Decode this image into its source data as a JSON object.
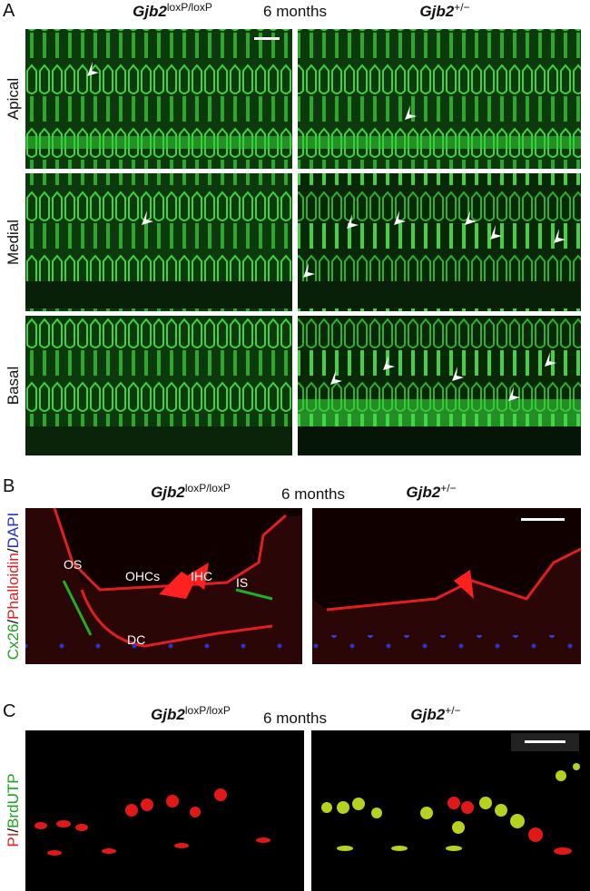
{
  "panels": [
    {
      "letter": "A",
      "left_label": {
        "gene": "Gjb2",
        "sup": "loxP/loxP"
      },
      "time": "6 months",
      "right_label": {
        "gene": "Gjb2",
        "sup": "+/−"
      },
      "rows": [
        "Apical",
        "Medial",
        "Basal"
      ]
    },
    {
      "letter": "B",
      "left_label": {
        "gene": "Gjb2",
        "sup": "loxP/loxP"
      },
      "time": "6 months",
      "right_label": {
        "gene": "Gjb2",
        "sup": "+/−"
      },
      "stain": [
        "Cx26",
        "/",
        "Phalloidin",
        "/",
        "DAPI"
      ],
      "annotations": [
        "OS",
        "OHCs",
        "IHC",
        "IS",
        "DC"
      ]
    },
    {
      "letter": "C",
      "left_label": {
        "gene": "Gjb2",
        "sup": "loxP/loxP"
      },
      "time": "6 months",
      "right_label": {
        "gene": "Gjb2",
        "sup": "+/−"
      },
      "stain": [
        "PI",
        "/",
        "BrdUTP"
      ]
    }
  ]
}
